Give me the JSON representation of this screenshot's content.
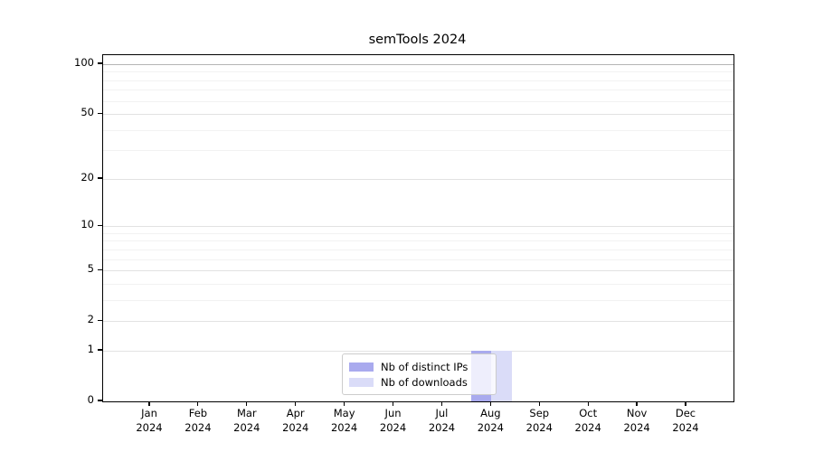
{
  "chart_data": {
    "type": "bar",
    "title": "semTools 2024",
    "year": "2024",
    "categories": [
      "Jan",
      "Feb",
      "Mar",
      "Apr",
      "May",
      "Jun",
      "Jul",
      "Aug",
      "Sep",
      "Oct",
      "Nov",
      "Dec"
    ],
    "series": [
      {
        "name": "Nb of distinct IPs",
        "color": "#a9aaee",
        "values": [
          0,
          0,
          0,
          0,
          0,
          0,
          0,
          1,
          0,
          0,
          0,
          0
        ]
      },
      {
        "name": "Nb of downloads",
        "color": "#dadcf8",
        "values": [
          0,
          0,
          0,
          0,
          0,
          0,
          0,
          1,
          0,
          0,
          0,
          0
        ]
      }
    ],
    "y_axis": {
      "scale": "log10(value+1)",
      "ticks": [
        0,
        1,
        2,
        5,
        10,
        20,
        50,
        100
      ],
      "minor_gridlines": [
        3,
        4,
        6,
        7,
        8,
        9,
        30,
        40,
        60,
        70,
        80,
        90
      ],
      "range": [
        0,
        100
      ]
    },
    "legend": {
      "position": "bottom-center"
    },
    "grid": true
  }
}
